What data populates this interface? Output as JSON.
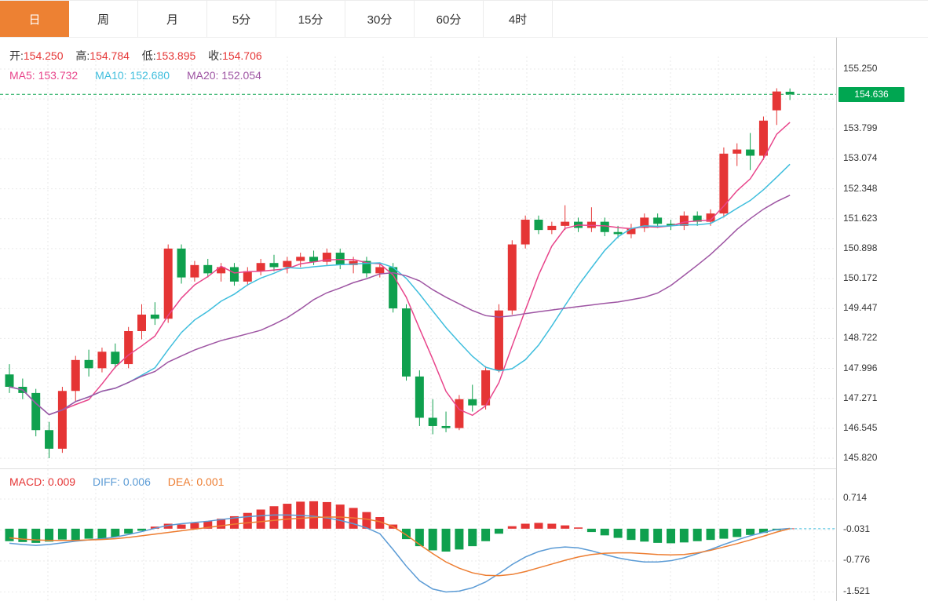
{
  "tabs": {
    "items": [
      {
        "label": "日",
        "active": true
      },
      {
        "label": "周",
        "active": false
      },
      {
        "label": "月",
        "active": false
      },
      {
        "label": "5分",
        "active": false
      },
      {
        "label": "15分",
        "active": false
      },
      {
        "label": "30分",
        "active": false
      },
      {
        "label": "60分",
        "active": false
      },
      {
        "label": "4时",
        "active": false
      }
    ]
  },
  "ohlc": {
    "open_label": "开:",
    "open": "154.250",
    "high_label": "高:",
    "high": "154.784",
    "low_label": "低:",
    "low": "153.895",
    "close_label": "收:",
    "close": "154.706"
  },
  "ma_info": {
    "ma5_label": "MA5:",
    "ma5": "153.732",
    "ma10_label": "MA10:",
    "ma10": "152.680",
    "ma20_label": "MA20:",
    "ma20": "152.054"
  },
  "macd_info": {
    "macd_label": "MACD:",
    "macd": "0.009",
    "diff_label": "DIFF:",
    "diff": "0.006",
    "dea_label": "DEA:",
    "dea": "0.001"
  },
  "price_badge": "154.636",
  "axis": {
    "main_labels": [
      "155.250",
      null,
      "153.799",
      "153.074",
      "152.348",
      "151.623",
      "150.898",
      "150.172",
      "149.447",
      "148.722",
      "147.996",
      "147.271",
      "146.545",
      "145.820"
    ],
    "macd_labels": [
      "0.714",
      "-0.031",
      "-0.776",
      "-1.521"
    ]
  },
  "colors": {
    "up": "#e53535",
    "down": "#0fa04e",
    "badge_bg": "#00a651",
    "last_price_line": "#0fa651",
    "ma5": "#e8458b",
    "ma10": "#3fbedd",
    "ma20": "#9e55a3",
    "diff": "#5b9bd5",
    "dea": "#ed7d31",
    "tab_active_bg": "#ed8133",
    "grid": "#eaeaea"
  },
  "chart_data": {
    "type": "candlestick+macd",
    "timeframe": "日",
    "legend": [
      "MA5",
      "MA10",
      "MA20",
      "MACD",
      "DIFF",
      "DEA"
    ],
    "price_axis": {
      "max": 155.25,
      "min": 145.82,
      "gridline_step": 0.7254
    },
    "last_price": 154.636,
    "candles": {
      "o": [
        147.85,
        147.55,
        147.4,
        146.5,
        146.05,
        147.45,
        148.2,
        148.0,
        148.4,
        148.1,
        148.9,
        149.3,
        149.2,
        150.9,
        150.2,
        150.5,
        150.3,
        150.45,
        150.1,
        150.35,
        150.55,
        150.45,
        150.6,
        150.7,
        150.58,
        150.8,
        150.5,
        150.6,
        150.3,
        150.45,
        149.45,
        147.8,
        146.8,
        146.6,
        146.55,
        147.25,
        147.1,
        147.95,
        149.4,
        151.0,
        151.6,
        151.35,
        151.45,
        151.55,
        151.4,
        151.55,
        151.3,
        151.25,
        151.4,
        151.65,
        151.5,
        151.45,
        151.7,
        151.55,
        151.75,
        153.2,
        153.3,
        153.15,
        154.25,
        154.7
      ],
      "h": [
        148.1,
        147.75,
        147.5,
        146.7,
        147.55,
        148.3,
        148.45,
        148.5,
        148.6,
        149.0,
        149.55,
        149.6,
        151.0,
        151.0,
        150.6,
        150.65,
        150.55,
        150.55,
        150.45,
        150.65,
        150.75,
        150.7,
        150.8,
        150.85,
        150.9,
        150.9,
        150.7,
        150.7,
        150.55,
        150.55,
        149.55,
        147.95,
        147.25,
        146.95,
        147.35,
        147.6,
        148.05,
        149.55,
        151.1,
        151.7,
        151.7,
        151.55,
        151.95,
        151.65,
        151.9,
        151.65,
        151.45,
        151.5,
        151.75,
        151.75,
        151.6,
        151.8,
        151.8,
        151.85,
        153.35,
        153.45,
        153.7,
        154.1,
        154.784,
        154.78
      ],
      "l": [
        147.4,
        147.25,
        146.35,
        145.82,
        145.95,
        147.2,
        147.8,
        147.9,
        148.0,
        148.0,
        148.7,
        149.05,
        149.1,
        150.05,
        150.1,
        150.2,
        150.1,
        150.0,
        150.0,
        150.25,
        150.35,
        150.3,
        150.45,
        150.5,
        150.5,
        150.4,
        150.3,
        150.2,
        150.2,
        149.35,
        147.7,
        146.6,
        146.4,
        146.45,
        146.5,
        146.95,
        147.0,
        147.9,
        149.3,
        150.9,
        151.25,
        151.25,
        151.35,
        151.3,
        151.3,
        151.2,
        151.15,
        151.15,
        151.3,
        151.4,
        151.35,
        151.35,
        151.45,
        151.45,
        151.65,
        152.9,
        152.8,
        153.05,
        153.895,
        154.5
      ],
      "c": [
        147.55,
        147.4,
        146.5,
        146.05,
        147.45,
        148.2,
        148.0,
        148.4,
        148.1,
        148.9,
        149.3,
        149.2,
        150.9,
        150.2,
        150.5,
        150.3,
        150.45,
        150.1,
        150.35,
        150.55,
        150.45,
        150.6,
        150.7,
        150.58,
        150.8,
        150.5,
        150.6,
        150.3,
        150.45,
        149.45,
        147.8,
        146.8,
        146.6,
        146.55,
        147.25,
        147.1,
        147.95,
        149.4,
        151.0,
        151.6,
        151.35,
        151.45,
        151.55,
        151.4,
        151.55,
        151.3,
        151.25,
        151.4,
        151.65,
        151.5,
        151.45,
        151.7,
        151.55,
        151.75,
        153.2,
        153.3,
        153.15,
        154.0,
        154.706,
        154.636
      ]
    },
    "ma_periods": [
      5,
      10,
      20
    ],
    "macd": {
      "gridlines": [
        0.714,
        -0.031,
        -0.776,
        -1.521
      ],
      "hist": [
        -0.3,
        -0.32,
        -0.34,
        -0.31,
        -0.26,
        -0.28,
        -0.24,
        -0.26,
        -0.2,
        -0.12,
        -0.05,
        0.05,
        0.12,
        0.1,
        0.14,
        0.18,
        0.24,
        0.3,
        0.38,
        0.46,
        0.54,
        0.6,
        0.65,
        0.66,
        0.64,
        0.58,
        0.5,
        0.4,
        0.28,
        0.1,
        -0.25,
        -0.42,
        -0.52,
        -0.55,
        -0.5,
        -0.42,
        -0.3,
        -0.12,
        0.06,
        0.12,
        0.14,
        0.12,
        0.08,
        0.03,
        -0.08,
        -0.16,
        -0.22,
        -0.27,
        -0.31,
        -0.34,
        -0.35,
        -0.33,
        -0.3,
        -0.27,
        -0.24,
        -0.2,
        -0.15,
        -0.1,
        -0.04,
        0.009
      ],
      "diff": [
        -0.35,
        -0.38,
        -0.4,
        -0.38,
        -0.34,
        -0.3,
        -0.27,
        -0.24,
        -0.2,
        -0.14,
        -0.07,
        0.01,
        0.08,
        0.12,
        0.15,
        0.18,
        0.22,
        0.26,
        0.29,
        0.31,
        0.33,
        0.33,
        0.32,
        0.3,
        0.26,
        0.2,
        0.12,
        0.02,
        -0.12,
        -0.5,
        -0.9,
        -1.25,
        -1.45,
        -1.52,
        -1.5,
        -1.42,
        -1.28,
        -1.08,
        -0.86,
        -0.68,
        -0.55,
        -0.47,
        -0.44,
        -0.46,
        -0.53,
        -0.62,
        -0.7,
        -0.76,
        -0.8,
        -0.8,
        -0.77,
        -0.7,
        -0.6,
        -0.5,
        -0.38,
        -0.27,
        -0.17,
        -0.09,
        -0.02,
        0.006
      ],
      "dea": [
        -0.22,
        -0.25,
        -0.27,
        -0.28,
        -0.28,
        -0.28,
        -0.27,
        -0.26,
        -0.24,
        -0.21,
        -0.17,
        -0.13,
        -0.09,
        -0.05,
        -0.01,
        0.03,
        0.07,
        0.11,
        0.14,
        0.17,
        0.2,
        0.23,
        0.25,
        0.27,
        0.28,
        0.28,
        0.26,
        0.23,
        0.17,
        0.05,
        -0.15,
        -0.38,
        -0.6,
        -0.8,
        -0.95,
        -1.06,
        -1.12,
        -1.13,
        -1.1,
        -1.03,
        -0.94,
        -0.85,
        -0.76,
        -0.68,
        -0.62,
        -0.59,
        -0.58,
        -0.58,
        -0.6,
        -0.62,
        -0.63,
        -0.62,
        -0.58,
        -0.52,
        -0.44,
        -0.36,
        -0.27,
        -0.18,
        -0.08,
        0.001
      ]
    }
  }
}
